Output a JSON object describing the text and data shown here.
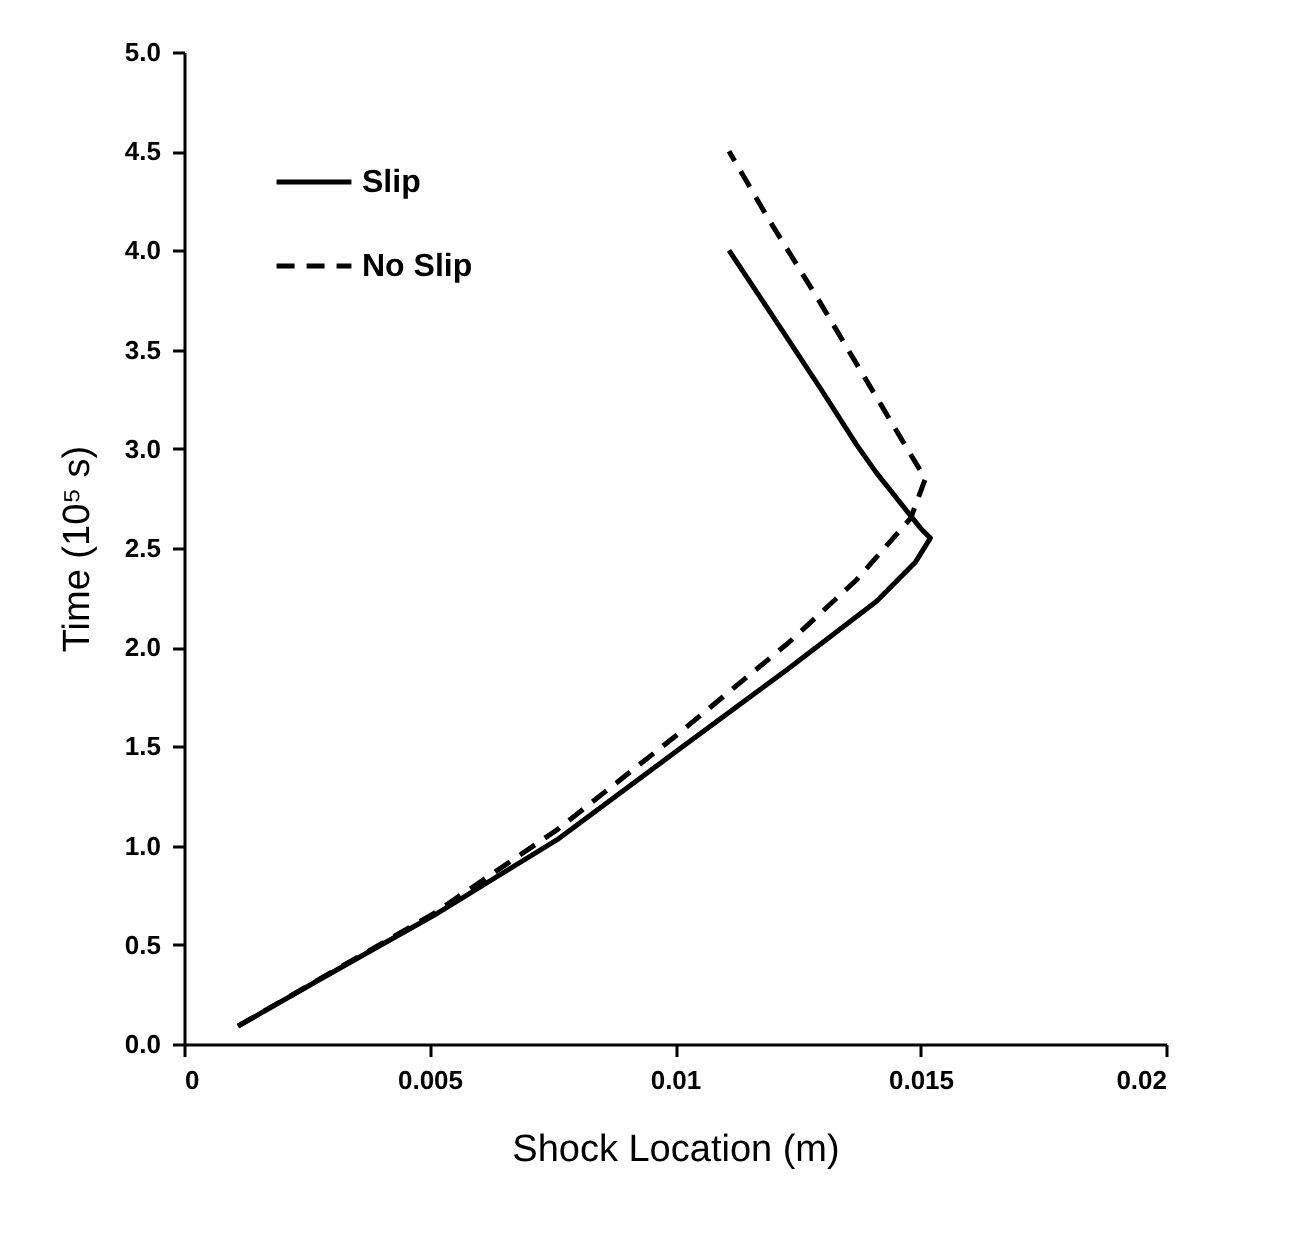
{
  "chart_data": {
    "type": "line",
    "xlabel": "Shock Location (m)",
    "ylabel": "Time (10⁵ s)",
    "xlim": [
      0,
      0.02
    ],
    "xticks": [
      0,
      0.005,
      0.01,
      0.015,
      0.02
    ],
    "ylim": [
      0,
      5
    ],
    "yticks": [
      {
        "value": 0,
        "label": "0.0"
      },
      0.5,
      {
        "value": 1,
        "label": "1.0"
      },
      1.5,
      {
        "value": 2,
        "label": "2.0"
      },
      2.5,
      {
        "value": 3,
        "label": "3.0"
      },
      3.5,
      {
        "value": 4,
        "label": "4.0"
      },
      4.5,
      {
        "value": 5,
        "label": "5.0"
      }
    ],
    "legend": "top left",
    "grid": false,
    "series": [
      {
        "name": "Slip",
        "color": "#000000",
        "line_style": "solid",
        "x": [
          0.0011,
          0.0028,
          0.0051,
          0.0076,
          0.01,
          0.0123,
          0.0141,
          0.0149,
          0.0152,
          0.015,
          0.0141,
          0.0137,
          0.013,
          0.0122,
          0.0111
        ],
        "values": [
          0.09,
          0.33,
          0.65,
          1.03,
          1.47,
          1.89,
          2.23,
          2.43,
          2.55,
          2.6,
          2.88,
          3.02,
          3.29,
          3.59,
          4.0
        ]
      },
      {
        "name": "No Slip",
        "color": "#000000",
        "line_style": "dashed",
        "x": [
          0.0011,
          0.0051,
          0.0076,
          0.01,
          0.0123,
          0.0137,
          0.0148,
          0.0151,
          0.0149,
          0.0142,
          0.0129,
          0.0119,
          0.0111
        ],
        "values": [
          0.09,
          0.66,
          1.08,
          1.55,
          2.02,
          2.34,
          2.65,
          2.85,
          2.93,
          3.22,
          3.76,
          4.16,
          4.5
        ]
      }
    ]
  }
}
